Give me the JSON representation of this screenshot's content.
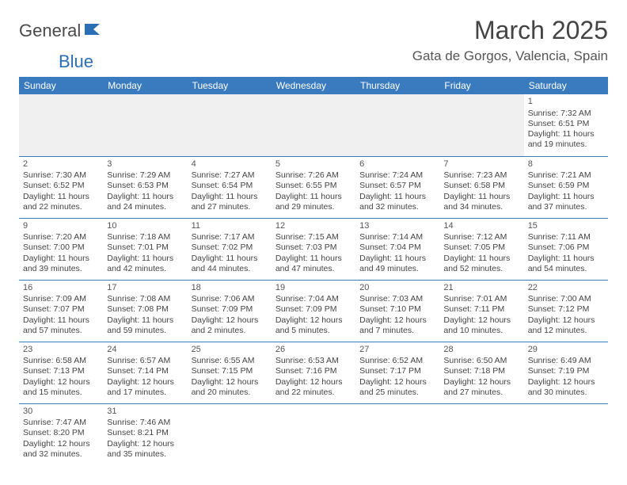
{
  "logo": {
    "part1": "General",
    "part2": "Blue"
  },
  "title": "March 2025",
  "location": "Gata de Gorgos, Valencia, Spain",
  "colors": {
    "header_bg": "#3a7bbf",
    "header_text": "#ffffff",
    "border": "#3a7bbf",
    "logo_blue": "#2a6fb5",
    "logo_gray": "#4a4a4a"
  },
  "daynames": [
    "Sunday",
    "Monday",
    "Tuesday",
    "Wednesday",
    "Thursday",
    "Friday",
    "Saturday"
  ],
  "weeks": [
    [
      null,
      null,
      null,
      null,
      null,
      null,
      {
        "n": "1",
        "sr": "Sunrise: 7:32 AM",
        "ss": "Sunset: 6:51 PM",
        "dl": "Daylight: 11 hours and 19 minutes."
      }
    ],
    [
      {
        "n": "2",
        "sr": "Sunrise: 7:30 AM",
        "ss": "Sunset: 6:52 PM",
        "dl": "Daylight: 11 hours and 22 minutes."
      },
      {
        "n": "3",
        "sr": "Sunrise: 7:29 AM",
        "ss": "Sunset: 6:53 PM",
        "dl": "Daylight: 11 hours and 24 minutes."
      },
      {
        "n": "4",
        "sr": "Sunrise: 7:27 AM",
        "ss": "Sunset: 6:54 PM",
        "dl": "Daylight: 11 hours and 27 minutes."
      },
      {
        "n": "5",
        "sr": "Sunrise: 7:26 AM",
        "ss": "Sunset: 6:55 PM",
        "dl": "Daylight: 11 hours and 29 minutes."
      },
      {
        "n": "6",
        "sr": "Sunrise: 7:24 AM",
        "ss": "Sunset: 6:57 PM",
        "dl": "Daylight: 11 hours and 32 minutes."
      },
      {
        "n": "7",
        "sr": "Sunrise: 7:23 AM",
        "ss": "Sunset: 6:58 PM",
        "dl": "Daylight: 11 hours and 34 minutes."
      },
      {
        "n": "8",
        "sr": "Sunrise: 7:21 AM",
        "ss": "Sunset: 6:59 PM",
        "dl": "Daylight: 11 hours and 37 minutes."
      }
    ],
    [
      {
        "n": "9",
        "sr": "Sunrise: 7:20 AM",
        "ss": "Sunset: 7:00 PM",
        "dl": "Daylight: 11 hours and 39 minutes."
      },
      {
        "n": "10",
        "sr": "Sunrise: 7:18 AM",
        "ss": "Sunset: 7:01 PM",
        "dl": "Daylight: 11 hours and 42 minutes."
      },
      {
        "n": "11",
        "sr": "Sunrise: 7:17 AM",
        "ss": "Sunset: 7:02 PM",
        "dl": "Daylight: 11 hours and 44 minutes."
      },
      {
        "n": "12",
        "sr": "Sunrise: 7:15 AM",
        "ss": "Sunset: 7:03 PM",
        "dl": "Daylight: 11 hours and 47 minutes."
      },
      {
        "n": "13",
        "sr": "Sunrise: 7:14 AM",
        "ss": "Sunset: 7:04 PM",
        "dl": "Daylight: 11 hours and 49 minutes."
      },
      {
        "n": "14",
        "sr": "Sunrise: 7:12 AM",
        "ss": "Sunset: 7:05 PM",
        "dl": "Daylight: 11 hours and 52 minutes."
      },
      {
        "n": "15",
        "sr": "Sunrise: 7:11 AM",
        "ss": "Sunset: 7:06 PM",
        "dl": "Daylight: 11 hours and 54 minutes."
      }
    ],
    [
      {
        "n": "16",
        "sr": "Sunrise: 7:09 AM",
        "ss": "Sunset: 7:07 PM",
        "dl": "Daylight: 11 hours and 57 minutes."
      },
      {
        "n": "17",
        "sr": "Sunrise: 7:08 AM",
        "ss": "Sunset: 7:08 PM",
        "dl": "Daylight: 11 hours and 59 minutes."
      },
      {
        "n": "18",
        "sr": "Sunrise: 7:06 AM",
        "ss": "Sunset: 7:09 PM",
        "dl": "Daylight: 12 hours and 2 minutes."
      },
      {
        "n": "19",
        "sr": "Sunrise: 7:04 AM",
        "ss": "Sunset: 7:09 PM",
        "dl": "Daylight: 12 hours and 5 minutes."
      },
      {
        "n": "20",
        "sr": "Sunrise: 7:03 AM",
        "ss": "Sunset: 7:10 PM",
        "dl": "Daylight: 12 hours and 7 minutes."
      },
      {
        "n": "21",
        "sr": "Sunrise: 7:01 AM",
        "ss": "Sunset: 7:11 PM",
        "dl": "Daylight: 12 hours and 10 minutes."
      },
      {
        "n": "22",
        "sr": "Sunrise: 7:00 AM",
        "ss": "Sunset: 7:12 PM",
        "dl": "Daylight: 12 hours and 12 minutes."
      }
    ],
    [
      {
        "n": "23",
        "sr": "Sunrise: 6:58 AM",
        "ss": "Sunset: 7:13 PM",
        "dl": "Daylight: 12 hours and 15 minutes."
      },
      {
        "n": "24",
        "sr": "Sunrise: 6:57 AM",
        "ss": "Sunset: 7:14 PM",
        "dl": "Daylight: 12 hours and 17 minutes."
      },
      {
        "n": "25",
        "sr": "Sunrise: 6:55 AM",
        "ss": "Sunset: 7:15 PM",
        "dl": "Daylight: 12 hours and 20 minutes."
      },
      {
        "n": "26",
        "sr": "Sunrise: 6:53 AM",
        "ss": "Sunset: 7:16 PM",
        "dl": "Daylight: 12 hours and 22 minutes."
      },
      {
        "n": "27",
        "sr": "Sunrise: 6:52 AM",
        "ss": "Sunset: 7:17 PM",
        "dl": "Daylight: 12 hours and 25 minutes."
      },
      {
        "n": "28",
        "sr": "Sunrise: 6:50 AM",
        "ss": "Sunset: 7:18 PM",
        "dl": "Daylight: 12 hours and 27 minutes."
      },
      {
        "n": "29",
        "sr": "Sunrise: 6:49 AM",
        "ss": "Sunset: 7:19 PM",
        "dl": "Daylight: 12 hours and 30 minutes."
      }
    ],
    [
      {
        "n": "30",
        "sr": "Sunrise: 7:47 AM",
        "ss": "Sunset: 8:20 PM",
        "dl": "Daylight: 12 hours and 32 minutes."
      },
      {
        "n": "31",
        "sr": "Sunrise: 7:46 AM",
        "ss": "Sunset: 8:21 PM",
        "dl": "Daylight: 12 hours and 35 minutes."
      },
      null,
      null,
      null,
      null,
      null
    ]
  ]
}
